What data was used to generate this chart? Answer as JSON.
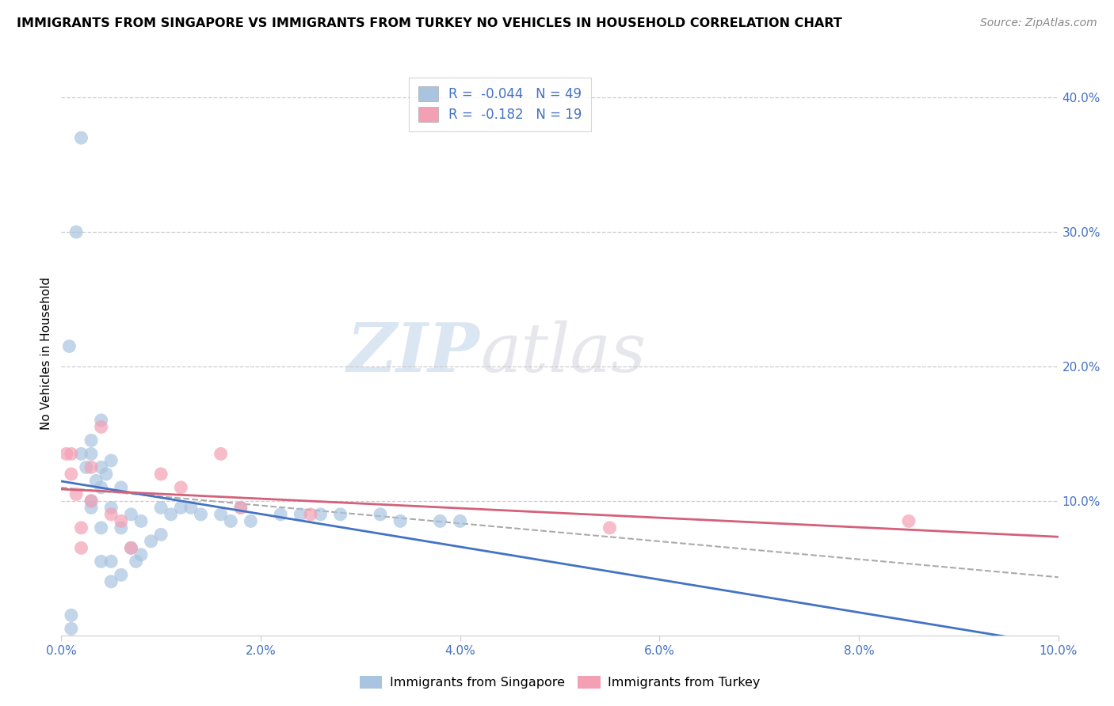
{
  "title": "IMMIGRANTS FROM SINGAPORE VS IMMIGRANTS FROM TURKEY NO VEHICLES IN HOUSEHOLD CORRELATION CHART",
  "source": "Source: ZipAtlas.com",
  "ylabel": "No Vehicles in Household",
  "xlim": [
    0.0,
    0.1
  ],
  "ylim": [
    0.0,
    0.42
  ],
  "x_ticks": [
    0.0,
    0.02,
    0.04,
    0.06,
    0.08,
    0.1
  ],
  "x_tick_labels": [
    "0.0%",
    "2.0%",
    "4.0%",
    "6.0%",
    "8.0%",
    "10.0%"
  ],
  "y_ticks_right": [
    0.1,
    0.2,
    0.3,
    0.4
  ],
  "y_tick_labels_right": [
    "10.0%",
    "20.0%",
    "30.0%",
    "40.0%"
  ],
  "singapore_R": -0.044,
  "singapore_N": 49,
  "turkey_R": -0.182,
  "turkey_N": 19,
  "singapore_color": "#a8c4e0",
  "turkey_color": "#f4a0b4",
  "singapore_line_color": "#4472c4",
  "turkey_line_color": "#d4607a",
  "watermark_zip": "ZIP",
  "watermark_atlas": "atlas",
  "legend_entries": [
    "Immigrants from Singapore",
    "Immigrants from Turkey"
  ],
  "singapore_points_x": [
    0.0008,
    0.0015,
    0.002,
    0.002,
    0.0025,
    0.003,
    0.003,
    0.003,
    0.003,
    0.0035,
    0.004,
    0.004,
    0.004,
    0.004,
    0.004,
    0.0045,
    0.005,
    0.005,
    0.005,
    0.005,
    0.006,
    0.006,
    0.006,
    0.007,
    0.007,
    0.0075,
    0.008,
    0.008,
    0.009,
    0.01,
    0.01,
    0.011,
    0.012,
    0.013,
    0.014,
    0.016,
    0.017,
    0.018,
    0.019,
    0.022,
    0.024,
    0.026,
    0.028,
    0.032,
    0.034,
    0.038,
    0.04,
    0.001,
    0.001
  ],
  "singapore_points_y": [
    0.215,
    0.3,
    0.37,
    0.135,
    0.125,
    0.135,
    0.145,
    0.1,
    0.095,
    0.115,
    0.16,
    0.125,
    0.11,
    0.08,
    0.055,
    0.12,
    0.13,
    0.095,
    0.055,
    0.04,
    0.11,
    0.08,
    0.045,
    0.09,
    0.065,
    0.055,
    0.085,
    0.06,
    0.07,
    0.095,
    0.075,
    0.09,
    0.095,
    0.095,
    0.09,
    0.09,
    0.085,
    0.095,
    0.085,
    0.09,
    0.09,
    0.09,
    0.09,
    0.09,
    0.085,
    0.085,
    0.085,
    0.015,
    0.005
  ],
  "turkey_points_x": [
    0.0005,
    0.001,
    0.001,
    0.0015,
    0.002,
    0.002,
    0.003,
    0.003,
    0.004,
    0.005,
    0.006,
    0.007,
    0.01,
    0.012,
    0.016,
    0.018,
    0.025,
    0.055,
    0.085
  ],
  "turkey_points_y": [
    0.135,
    0.135,
    0.12,
    0.105,
    0.08,
    0.065,
    0.125,
    0.1,
    0.155,
    0.09,
    0.085,
    0.065,
    0.12,
    0.11,
    0.135,
    0.095,
    0.09,
    0.08,
    0.085
  ]
}
